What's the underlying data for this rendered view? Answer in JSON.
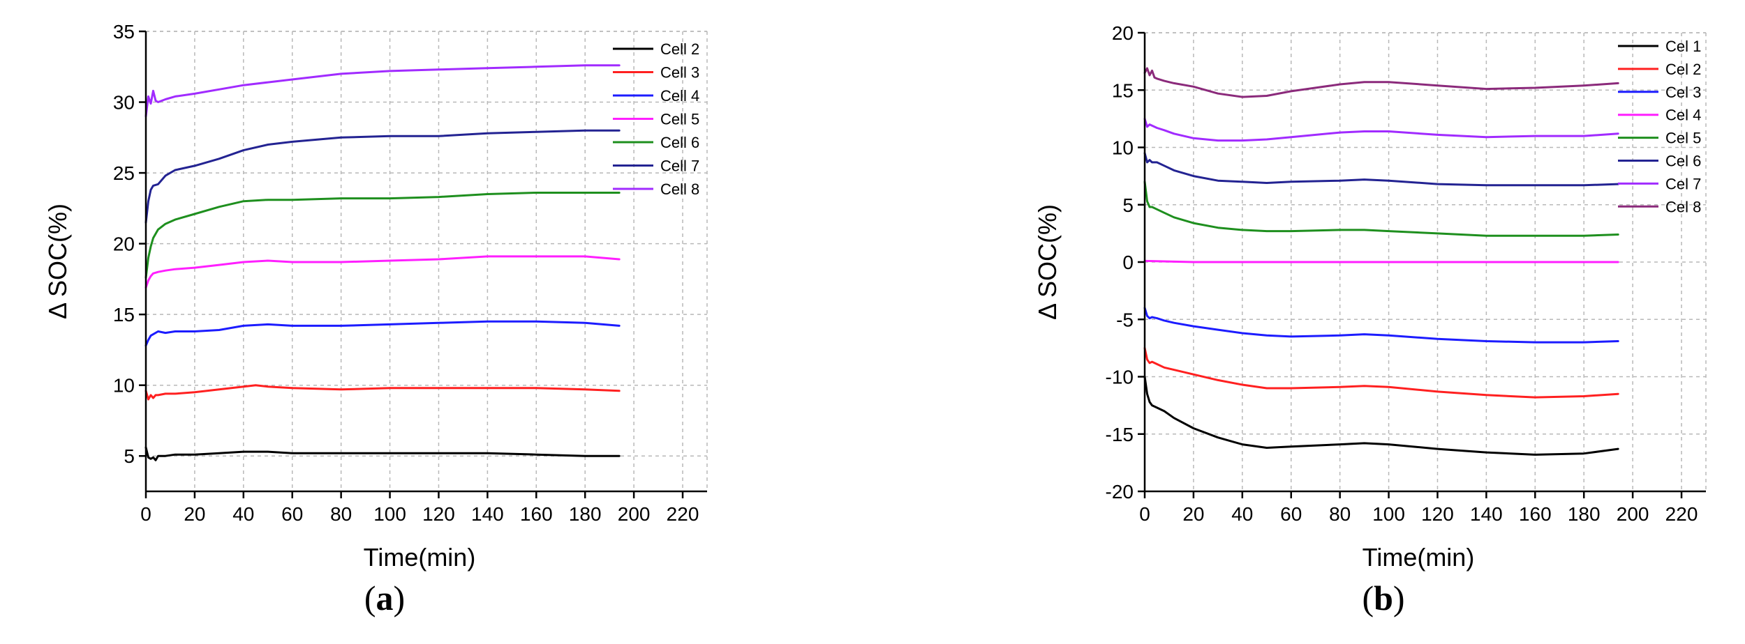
{
  "chart_data": [
    {
      "type": "line",
      "panel_label": "(a)",
      "xlabel": "Time(min)",
      "ylabel": "Δ SOC(%)",
      "xlim": [
        0,
        230
      ],
      "ylim": [
        2.5,
        35
      ],
      "xticks": [
        0,
        20,
        40,
        60,
        80,
        100,
        120,
        140,
        160,
        180,
        200,
        220
      ],
      "yticks": [
        5,
        10,
        15,
        20,
        25,
        30,
        35
      ],
      "grid": true,
      "legend_position": "top-right",
      "series": [
        {
          "name": "Cell 2",
          "color": "#000000",
          "x": [
            0,
            1,
            2,
            3,
            4,
            5,
            8,
            12,
            20,
            30,
            40,
            50,
            60,
            80,
            100,
            120,
            140,
            160,
            180,
            194
          ],
          "y": [
            5.6,
            4.9,
            4.8,
            4.9,
            4.7,
            5.0,
            5.0,
            5.1,
            5.1,
            5.2,
            5.3,
            5.3,
            5.2,
            5.2,
            5.2,
            5.2,
            5.2,
            5.1,
            5.0,
            5.0
          ]
        },
        {
          "name": "Cell 3",
          "color": "#ff2020",
          "x": [
            0,
            1,
            2,
            3,
            4,
            5,
            8,
            12,
            20,
            30,
            40,
            45,
            50,
            60,
            80,
            100,
            120,
            140,
            160,
            180,
            194
          ],
          "y": [
            9.6,
            9.0,
            9.3,
            9.1,
            9.3,
            9.3,
            9.4,
            9.4,
            9.5,
            9.7,
            9.9,
            10.0,
            9.9,
            9.8,
            9.7,
            9.8,
            9.8,
            9.8,
            9.8,
            9.7,
            9.6
          ]
        },
        {
          "name": "Cell 4",
          "color": "#1c1cff",
          "x": [
            0,
            1,
            2,
            3,
            5,
            8,
            12,
            20,
            30,
            40,
            50,
            60,
            80,
            100,
            120,
            140,
            160,
            180,
            194
          ],
          "y": [
            12.8,
            13.2,
            13.5,
            13.6,
            13.8,
            13.7,
            13.8,
            13.8,
            13.9,
            14.2,
            14.3,
            14.2,
            14.2,
            14.3,
            14.4,
            14.5,
            14.5,
            14.4,
            14.2
          ]
        },
        {
          "name": "Cell 5",
          "color": "#ff1fff",
          "x": [
            0,
            1,
            2,
            3,
            5,
            8,
            12,
            20,
            30,
            40,
            50,
            60,
            80,
            100,
            120,
            140,
            160,
            180,
            194
          ],
          "y": [
            16.9,
            17.4,
            17.7,
            17.9,
            18.0,
            18.1,
            18.2,
            18.3,
            18.5,
            18.7,
            18.8,
            18.7,
            18.7,
            18.8,
            18.9,
            19.1,
            19.1,
            19.1,
            18.9
          ]
        },
        {
          "name": "Cell 6",
          "color": "#1e8f1e",
          "x": [
            0,
            1,
            2,
            3,
            5,
            8,
            12,
            20,
            30,
            40,
            50,
            60,
            80,
            100,
            120,
            140,
            160,
            180,
            194
          ],
          "y": [
            17.6,
            19.0,
            19.8,
            20.4,
            21.0,
            21.4,
            21.7,
            22.1,
            22.6,
            23.0,
            23.1,
            23.1,
            23.2,
            23.2,
            23.3,
            23.5,
            23.6,
            23.6,
            23.6
          ]
        },
        {
          "name": "Cell 7",
          "color": "#232392",
          "x": [
            0,
            1,
            2,
            3,
            5,
            8,
            12,
            20,
            30,
            40,
            50,
            60,
            80,
            100,
            120,
            140,
            160,
            180,
            194
          ],
          "y": [
            21.5,
            23.0,
            23.8,
            24.1,
            24.2,
            24.8,
            25.2,
            25.5,
            26.0,
            26.6,
            27.0,
            27.2,
            27.5,
            27.6,
            27.6,
            27.8,
            27.9,
            28.0,
            28.0
          ]
        },
        {
          "name": "Cell 8",
          "color": "#a12bff",
          "x": [
            0,
            1,
            2,
            3,
            4,
            5,
            8,
            12,
            20,
            30,
            40,
            50,
            60,
            80,
            100,
            120,
            140,
            160,
            180,
            194
          ],
          "y": [
            29.0,
            30.4,
            29.9,
            30.8,
            30.1,
            30.0,
            30.2,
            30.4,
            30.6,
            30.9,
            31.2,
            31.4,
            31.6,
            32.0,
            32.2,
            32.3,
            32.4,
            32.5,
            32.6,
            32.6
          ]
        }
      ]
    },
    {
      "type": "line",
      "panel_label": "(b)",
      "xlabel": "Time(min)",
      "ylabel": "Δ SOC(%)",
      "xlim": [
        0,
        230
      ],
      "ylim": [
        -20,
        20
      ],
      "xticks": [
        0,
        20,
        40,
        60,
        80,
        100,
        120,
        140,
        160,
        180,
        200,
        220
      ],
      "yticks": [
        -20,
        -15,
        -10,
        -5,
        0,
        5,
        10,
        15,
        20
      ],
      "grid": true,
      "legend_position": "top-right",
      "series": [
        {
          "name": "Cel 1",
          "color": "#000000",
          "x": [
            0,
            1,
            2,
            3,
            5,
            8,
            12,
            20,
            30,
            40,
            50,
            60,
            80,
            90,
            100,
            120,
            140,
            160,
            180,
            194
          ],
          "y": [
            -10.0,
            -11.5,
            -12.2,
            -12.5,
            -12.7,
            -13.0,
            -13.6,
            -14.5,
            -15.3,
            -15.9,
            -16.2,
            -16.1,
            -15.9,
            -15.8,
            -15.9,
            -16.3,
            -16.6,
            -16.8,
            -16.7,
            -16.3
          ]
        },
        {
          "name": "Cel 2",
          "color": "#ff2020",
          "x": [
            0,
            1,
            2,
            3,
            5,
            8,
            12,
            20,
            30,
            40,
            50,
            60,
            80,
            90,
            100,
            120,
            140,
            160,
            180,
            194
          ],
          "y": [
            -7.5,
            -8.5,
            -8.8,
            -8.7,
            -8.9,
            -9.2,
            -9.4,
            -9.8,
            -10.3,
            -10.7,
            -11.0,
            -11.0,
            -10.9,
            -10.8,
            -10.9,
            -11.3,
            -11.6,
            -11.8,
            -11.7,
            -11.5
          ]
        },
        {
          "name": "Cel 3",
          "color": "#1c1cff",
          "x": [
            0,
            1,
            2,
            3,
            5,
            8,
            12,
            20,
            30,
            40,
            50,
            60,
            80,
            90,
            100,
            120,
            140,
            160,
            180,
            194
          ],
          "y": [
            -4.0,
            -4.7,
            -4.9,
            -4.8,
            -4.9,
            -5.1,
            -5.3,
            -5.6,
            -5.9,
            -6.2,
            -6.4,
            -6.5,
            -6.4,
            -6.3,
            -6.4,
            -6.7,
            -6.9,
            -7.0,
            -7.0,
            -6.9
          ]
        },
        {
          "name": "Cel 4",
          "color": "#ff1fff",
          "x": [
            0,
            20,
            40,
            60,
            80,
            100,
            120,
            140,
            160,
            180,
            194
          ],
          "y": [
            0.1,
            0.0,
            0.0,
            0.0,
            0.0,
            0.0,
            0.0,
            0.0,
            0.0,
            0.0,
            0.0
          ]
        },
        {
          "name": "Cel 5",
          "color": "#1e8f1e",
          "x": [
            0,
            1,
            2,
            3,
            5,
            8,
            12,
            20,
            30,
            40,
            50,
            60,
            80,
            90,
            100,
            120,
            140,
            160,
            180,
            194
          ],
          "y": [
            7.0,
            5.3,
            4.8,
            4.8,
            4.6,
            4.3,
            3.9,
            3.4,
            3.0,
            2.8,
            2.7,
            2.7,
            2.8,
            2.8,
            2.7,
            2.5,
            2.3,
            2.3,
            2.3,
            2.4
          ]
        },
        {
          "name": "Cel 6",
          "color": "#232392",
          "x": [
            0,
            1,
            2,
            3,
            5,
            8,
            12,
            20,
            30,
            40,
            50,
            60,
            80,
            90,
            100,
            120,
            140,
            160,
            180,
            194
          ],
          "y": [
            9.5,
            8.7,
            8.9,
            8.7,
            8.7,
            8.4,
            8.0,
            7.5,
            7.1,
            7.0,
            6.9,
            7.0,
            7.1,
            7.2,
            7.1,
            6.8,
            6.7,
            6.7,
            6.7,
            6.8
          ]
        },
        {
          "name": "Cel 7",
          "color": "#a12bff",
          "x": [
            0,
            1,
            2,
            3,
            5,
            8,
            12,
            20,
            30,
            40,
            50,
            60,
            80,
            90,
            100,
            120,
            140,
            160,
            180,
            194
          ],
          "y": [
            12.5,
            11.8,
            12.0,
            11.9,
            11.7,
            11.5,
            11.2,
            10.8,
            10.6,
            10.6,
            10.7,
            10.9,
            11.3,
            11.4,
            11.4,
            11.1,
            10.9,
            11.0,
            11.0,
            11.2
          ]
        },
        {
          "name": "Cel 8",
          "color": "#8b2a7b",
          "x": [
            0,
            1,
            2,
            3,
            4,
            5,
            8,
            12,
            20,
            30,
            40,
            50,
            60,
            80,
            90,
            100,
            120,
            140,
            160,
            180,
            194
          ],
          "y": [
            16.5,
            16.9,
            16.3,
            16.7,
            16.1,
            16.0,
            15.8,
            15.6,
            15.3,
            14.7,
            14.4,
            14.5,
            14.9,
            15.5,
            15.7,
            15.7,
            15.4,
            15.1,
            15.2,
            15.4,
            15.6
          ]
        }
      ]
    }
  ]
}
